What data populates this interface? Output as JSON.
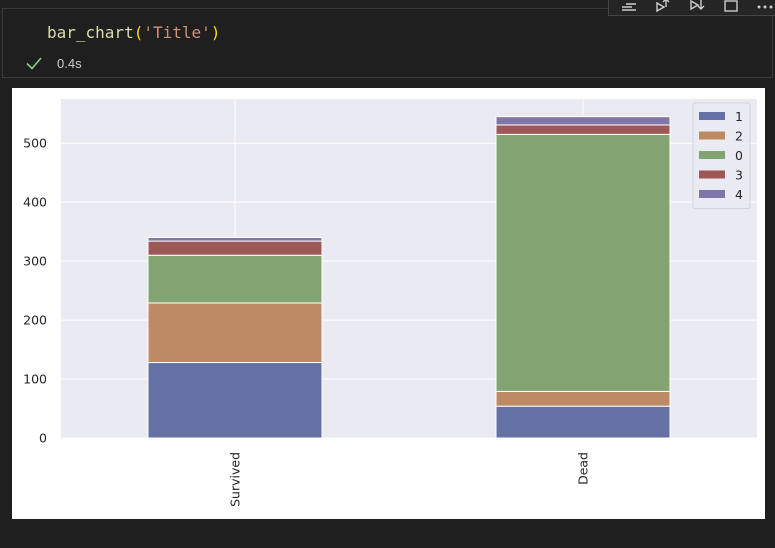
{
  "cell": {
    "code_fn": "bar_chart",
    "code_open": "(",
    "code_arg": "'Title'",
    "code_close": ")",
    "exec_time": "0.4s",
    "status_icon": "check-icon",
    "toolbar_icons": [
      "run-by-line-icon",
      "execute-above-icon",
      "execute-below-icon",
      "split-cell-icon",
      "more-icon"
    ]
  },
  "chart_data": {
    "type": "bar",
    "stacked": true,
    "categories": [
      "Survived",
      "Dead"
    ],
    "series": [
      {
        "name": "1",
        "color": "#6471a5",
        "values": [
          128,
          54
        ]
      },
      {
        "name": "2",
        "color": "#bc8a64",
        "values": [
          101,
          25
        ]
      },
      {
        "name": "0",
        "color": "#82a472",
        "values": [
          81,
          436
        ]
      },
      {
        "name": "3",
        "color": "#9c5757",
        "values": [
          24,
          16
        ]
      },
      {
        "name": "4",
        "color": "#7f76a9",
        "values": [
          6,
          14
        ]
      }
    ],
    "yticks": [
      0,
      100,
      200,
      300,
      400,
      500
    ],
    "ylim": [
      0,
      575
    ],
    "grid": true,
    "legend_position": "top-right",
    "background": "#eaeaf2"
  }
}
